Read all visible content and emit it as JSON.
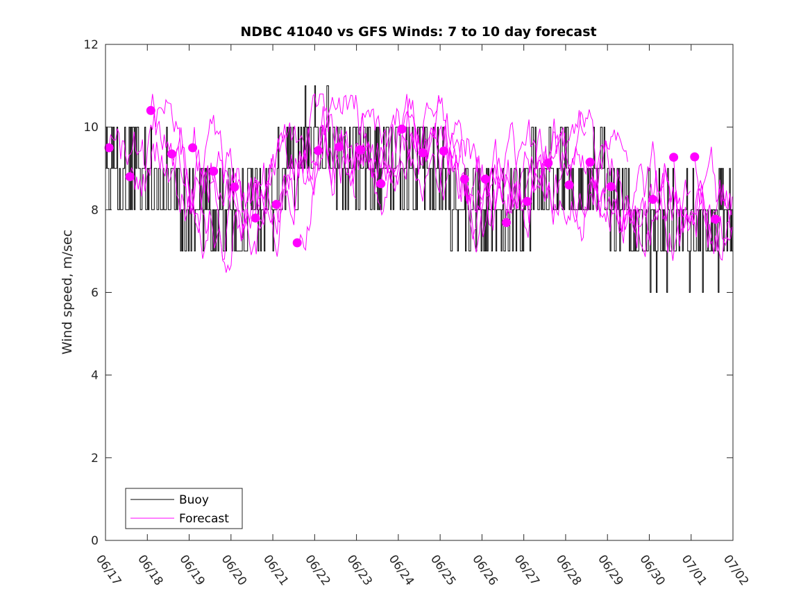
{
  "chart_data": {
    "type": "line",
    "title": "NDBC 41040 vs GFS Winds: 7 to 10 day forecast",
    "xlabel": "",
    "ylabel": "Wind speed, m/sec",
    "xlim": [
      "06/17",
      "07/02"
    ],
    "ylim": [
      0,
      12
    ],
    "x_ticks": [
      "06/17",
      "06/18",
      "06/19",
      "06/20",
      "06/21",
      "06/22",
      "06/23",
      "06/24",
      "06/25",
      "06/26",
      "06/27",
      "06/28",
      "06/29",
      "06/30",
      "07/01",
      "07/02"
    ],
    "y_ticks": [
      0,
      2,
      4,
      6,
      8,
      10,
      12
    ],
    "grid": false,
    "legend_position": "bottom-left",
    "legend": [
      "Buoy",
      "Forecast"
    ],
    "colors": {
      "buoy": "#000000",
      "forecast": "#ff00ff"
    },
    "buoy_day_means": [
      {
        "day": "06/17",
        "value": 8.6
      },
      {
        "day": "06/18",
        "value": 8.7
      },
      {
        "day": "06/19",
        "value": 8.3
      },
      {
        "day": "06/20",
        "value": 7.8
      },
      {
        "day": "06/21",
        "value": 8.3
      },
      {
        "day": "06/22",
        "value": 9.9
      },
      {
        "day": "06/23",
        "value": 9.0
      },
      {
        "day": "06/24",
        "value": 9.4
      },
      {
        "day": "06/25",
        "value": 8.7
      },
      {
        "day": "06/26",
        "value": 7.7
      },
      {
        "day": "06/27",
        "value": 8.4
      },
      {
        "day": "06/28",
        "value": 8.9
      },
      {
        "day": "06/29",
        "value": 8.5
      },
      {
        "day": "06/30",
        "value": 7.5
      },
      {
        "day": "07/01",
        "value": 7.6
      }
    ],
    "forecast_markers": [
      {
        "x": "06/17 02:00",
        "y": 9.5
      },
      {
        "x": "06/17 14:00",
        "y": 8.8
      },
      {
        "x": "06/18 02:00",
        "y": 10.4
      },
      {
        "x": "06/18 14:00",
        "y": 9.35
      },
      {
        "x": "06/19 02:00",
        "y": 9.5
      },
      {
        "x": "06/19 14:00",
        "y": 8.93
      },
      {
        "x": "06/20 02:00",
        "y": 8.55
      },
      {
        "x": "06/20 14:00",
        "y": 7.8
      },
      {
        "x": "06/21 02:00",
        "y": 8.13
      },
      {
        "x": "06/21 14:00",
        "y": 7.2
      },
      {
        "x": "06/22 02:00",
        "y": 9.43
      },
      {
        "x": "06/22 14:00",
        "y": 9.52
      },
      {
        "x": "06/23 02:00",
        "y": 9.45
      },
      {
        "x": "06/23 14:00",
        "y": 8.63
      },
      {
        "x": "06/24 02:00",
        "y": 9.95
      },
      {
        "x": "06/24 14:00",
        "y": 9.38
      },
      {
        "x": "06/25 02:00",
        "y": 9.42
      },
      {
        "x": "06/25 14:00",
        "y": 8.74
      },
      {
        "x": "06/26 02:00",
        "y": 8.74
      },
      {
        "x": "06/26 14:00",
        "y": 7.69
      },
      {
        "x": "06/27 02:00",
        "y": 8.2
      },
      {
        "x": "06/27 14:00",
        "y": 9.13
      },
      {
        "x": "06/28 02:00",
        "y": 8.6
      },
      {
        "x": "06/28 14:00",
        "y": 9.15
      },
      {
        "x": "06/29 02:00",
        "y": 8.56
      },
      {
        "x": "06/30 02:00",
        "y": 8.25
      },
      {
        "x": "06/30 14:00",
        "y": 9.27
      },
      {
        "x": "07/01 02:00",
        "y": 9.28
      },
      {
        "x": "07/01 14:00",
        "y": 7.77
      }
    ]
  }
}
